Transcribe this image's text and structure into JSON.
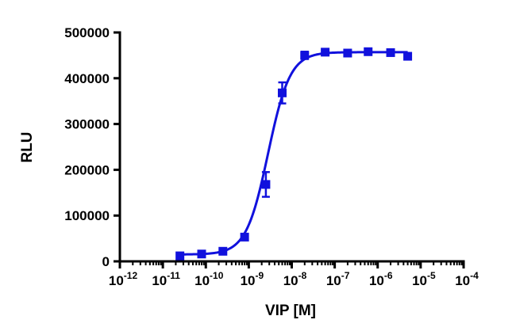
{
  "chart_data": {
    "type": "scatter",
    "title": "",
    "xlabel": "VIP [M]",
    "ylabel": "RLU",
    "xscale": "log",
    "xlim": [
      1e-12,
      0.0001
    ],
    "ylim": [
      0,
      500000
    ],
    "x_ticks": [
      {
        "base": "10",
        "exp": "-12",
        "value": 1e-12
      },
      {
        "base": "10",
        "exp": "-11",
        "value": 1e-11
      },
      {
        "base": "10",
        "exp": "-10",
        "value": 1e-10
      },
      {
        "base": "10",
        "exp": "-9",
        "value": 1e-09
      },
      {
        "base": "10",
        "exp": "-8",
        "value": 1e-08
      },
      {
        "base": "10",
        "exp": "-7",
        "value": 1e-07
      },
      {
        "base": "10",
        "exp": "-6",
        "value": 1e-06
      },
      {
        "base": "10",
        "exp": "-5",
        "value": 1e-05
      },
      {
        "base": "10",
        "exp": "-4",
        "value": 0.0001
      }
    ],
    "y_ticks": [
      {
        "label": "0",
        "value": 0
      },
      {
        "label": "100000",
        "value": 100000
      },
      {
        "label": "200000",
        "value": 200000
      },
      {
        "label": "300000",
        "value": 300000
      },
      {
        "label": "400000",
        "value": 400000
      },
      {
        "label": "500000",
        "value": 500000
      }
    ],
    "series": [
      {
        "marker": "square",
        "color": "#1111dd",
        "points": [
          {
            "x": 2.5e-11,
            "y": 12000,
            "err": 0
          },
          {
            "x": 8e-11,
            "y": 16000,
            "err": 0
          },
          {
            "x": 2.5e-10,
            "y": 22000,
            "err": 0
          },
          {
            "x": 8e-10,
            "y": 53000,
            "err": 4000
          },
          {
            "x": 2.5e-09,
            "y": 168000,
            "err": 27000
          },
          {
            "x": 6e-09,
            "y": 368000,
            "err": 23000
          },
          {
            "x": 2e-08,
            "y": 450000,
            "err": 8000
          },
          {
            "x": 6e-08,
            "y": 457000,
            "err": 0
          },
          {
            "x": 2e-07,
            "y": 455000,
            "err": 0
          },
          {
            "x": 6e-07,
            "y": 458000,
            "err": 6000
          },
          {
            "x": 2e-06,
            "y": 456000,
            "err": 0
          },
          {
            "x": 5e-06,
            "y": 448000,
            "err": 0
          }
        ],
        "fit": {
          "model": "4PL",
          "bottom": 15000,
          "top": 457000,
          "log_ec50": -8.55,
          "hill": 1.7
        }
      }
    ],
    "grid": false,
    "legend": "none"
  }
}
